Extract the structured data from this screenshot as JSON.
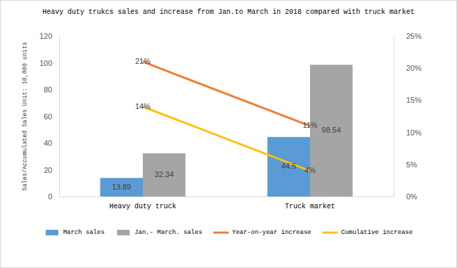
{
  "chart_data": {
    "type": "bar",
    "title": "Heavy duty trukcs sales and increase from Jan.to March in 2018 compared with truck market",
    "y_label": "Sales/Accumulated Sales Unit: 10,000 units",
    "categories": [
      "Heavy duty truck",
      "Truck market"
    ],
    "series": [
      {
        "name": "March sales",
        "type": "bar",
        "color": "#5b9bd5",
        "values": [
          13.89,
          44.5
        ]
      },
      {
        "name": "Jan.- March. sales",
        "type": "bar",
        "color": "#a5a5a5",
        "values": [
          32.34,
          98.54
        ]
      },
      {
        "name": "Year-on-year increase",
        "type": "line",
        "axis": "y2",
        "color": "#ed7d31",
        "values": [
          21,
          11
        ],
        "value_labels": [
          "21%",
          "11%"
        ]
      },
      {
        "name": "Cumulative increase",
        "type": "line",
        "axis": "y2",
        "color": "#ffc000",
        "values": [
          14,
          4
        ],
        "value_labels": [
          "14%",
          "4%"
        ]
      }
    ],
    "ylim": [
      0,
      120
    ],
    "yticks": [
      0,
      20,
      40,
      60,
      80,
      100,
      120
    ],
    "y2lim": [
      0,
      25
    ],
    "y2ticks": [
      {
        "value": 0,
        "label": "0%"
      },
      {
        "value": 5,
        "label": "5%"
      },
      {
        "value": 10,
        "label": "10%"
      },
      {
        "value": 15,
        "label": "15%"
      },
      {
        "value": 20,
        "label": "20%"
      },
      {
        "value": 25,
        "label": "25%"
      }
    ],
    "data_labels": true,
    "legend": "bottom",
    "grid": false
  }
}
